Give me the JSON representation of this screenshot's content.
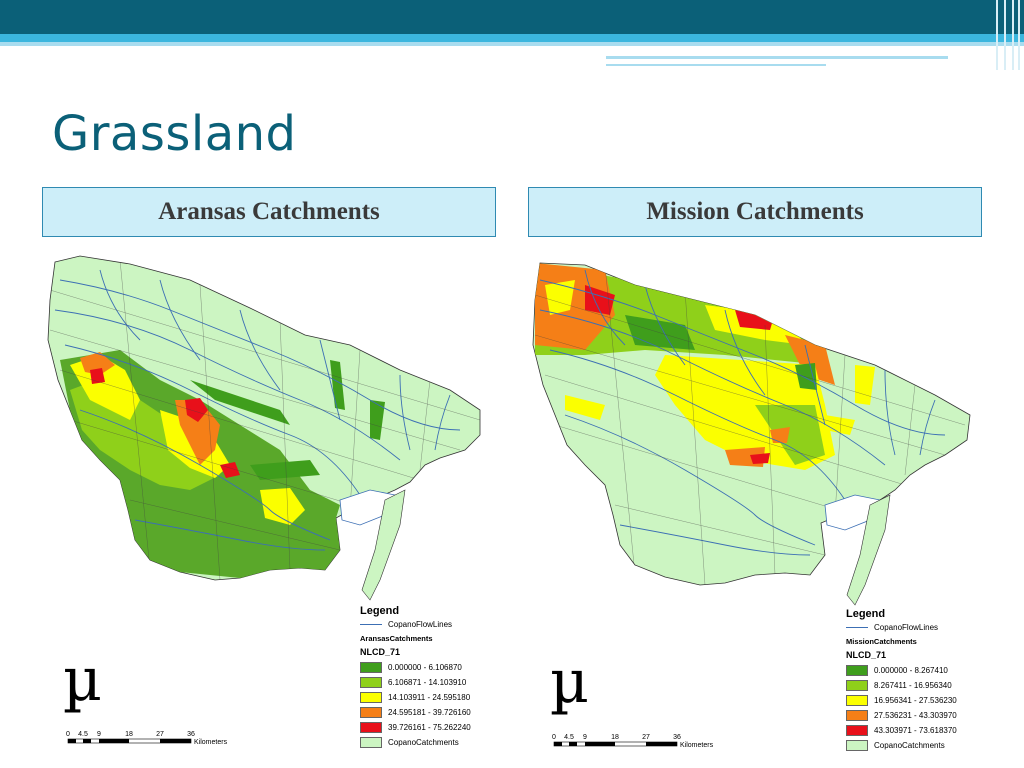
{
  "slide": {
    "title": "Grassland",
    "colors": {
      "accent_dark": "#0b6078",
      "accent_light": "#3bb6de",
      "header_fill": "#cdeef9",
      "header_border": "#2f8ab2"
    }
  },
  "panels": [
    {
      "heading": "Aransas Catchments",
      "legend": {
        "title": "Legend",
        "flowlines": "CopanoFlowLines",
        "catchments_layer": "AransasCatchments",
        "field": "NLCD_71",
        "classes": [
          {
            "label": "0.000000 - 6.106870",
            "color": "#3f9e1c"
          },
          {
            "label": "6.106871 - 14.103910",
            "color": "#8fd01a"
          },
          {
            "label": "14.103911 - 24.595180",
            "color": "#fbff00"
          },
          {
            "label": "24.595181 - 39.726160",
            "color": "#f57f17"
          },
          {
            "label": "39.726161 - 75.262240",
            "color": "#e8101a"
          }
        ],
        "base_layer": {
          "label": "CopanoCatchments",
          "color": "#ccf5c2"
        }
      },
      "north_symbol": "µ",
      "scale": {
        "ticks": [
          "0",
          "4.5",
          "9",
          "18",
          "27",
          "36"
        ],
        "unit": "Kilometers"
      }
    },
    {
      "heading": "Mission Catchments",
      "legend": {
        "title": "Legend",
        "flowlines": "CopanoFlowLines",
        "catchments_layer": "MissionCatchments",
        "field": "NLCD_71",
        "classes": [
          {
            "label": "0.000000 - 8.267410",
            "color": "#3f9e1c"
          },
          {
            "label": "8.267411 - 16.956340",
            "color": "#8fd01a"
          },
          {
            "label": "16.956341 - 27.536230",
            "color": "#fbff00"
          },
          {
            "label": "27.536231 - 43.303970",
            "color": "#f57f17"
          },
          {
            "label": "43.303971 - 73.618370",
            "color": "#e8101a"
          }
        ],
        "base_layer": {
          "label": "CopanoCatchments",
          "color": "#ccf5c2"
        }
      },
      "north_symbol": "µ",
      "scale": {
        "ticks": [
          "0",
          "4.5",
          "9",
          "18",
          "27",
          "36"
        ],
        "unit": "Kilometers"
      }
    }
  ]
}
